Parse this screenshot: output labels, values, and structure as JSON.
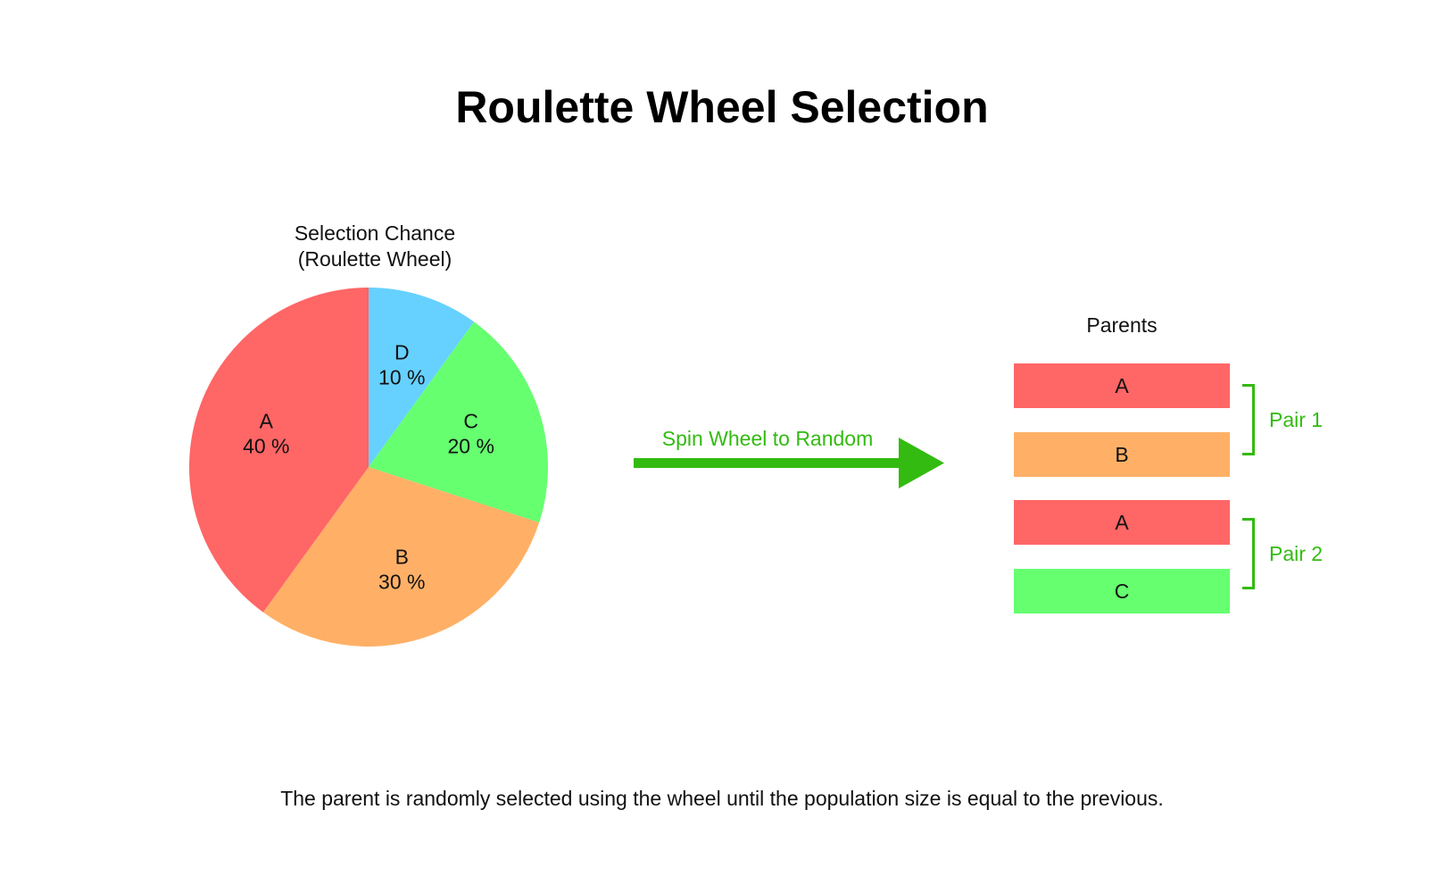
{
  "title": "Roulette Wheel Selection",
  "wheel": {
    "title_line1": "Selection Chance",
    "title_line2": "(Roulette Wheel)",
    "slices": [
      {
        "name": "A",
        "value": 40,
        "label": "40 %",
        "color": "#ff6666"
      },
      {
        "name": "B",
        "value": 30,
        "label": "30 %",
        "color": "#ffb066"
      },
      {
        "name": "C",
        "value": 20,
        "label": "20 %",
        "color": "#66ff70"
      },
      {
        "name": "D",
        "value": 10,
        "label": "10 %",
        "color": "#66d1ff"
      }
    ]
  },
  "arrow": {
    "label": "Spin Wheel to Random",
    "color": "#33bb11"
  },
  "parents": {
    "title": "Parents",
    "items": [
      {
        "label": "A",
        "color": "#ff6666"
      },
      {
        "label": "B",
        "color": "#ffb066"
      },
      {
        "label": "A",
        "color": "#ff6666"
      },
      {
        "label": "C",
        "color": "#66ff70"
      }
    ],
    "pairs": [
      {
        "label": "Pair 1"
      },
      {
        "label": "Pair 2"
      }
    ]
  },
  "caption": "The parent is randomly selected using the wheel until the population size is equal to the previous."
}
